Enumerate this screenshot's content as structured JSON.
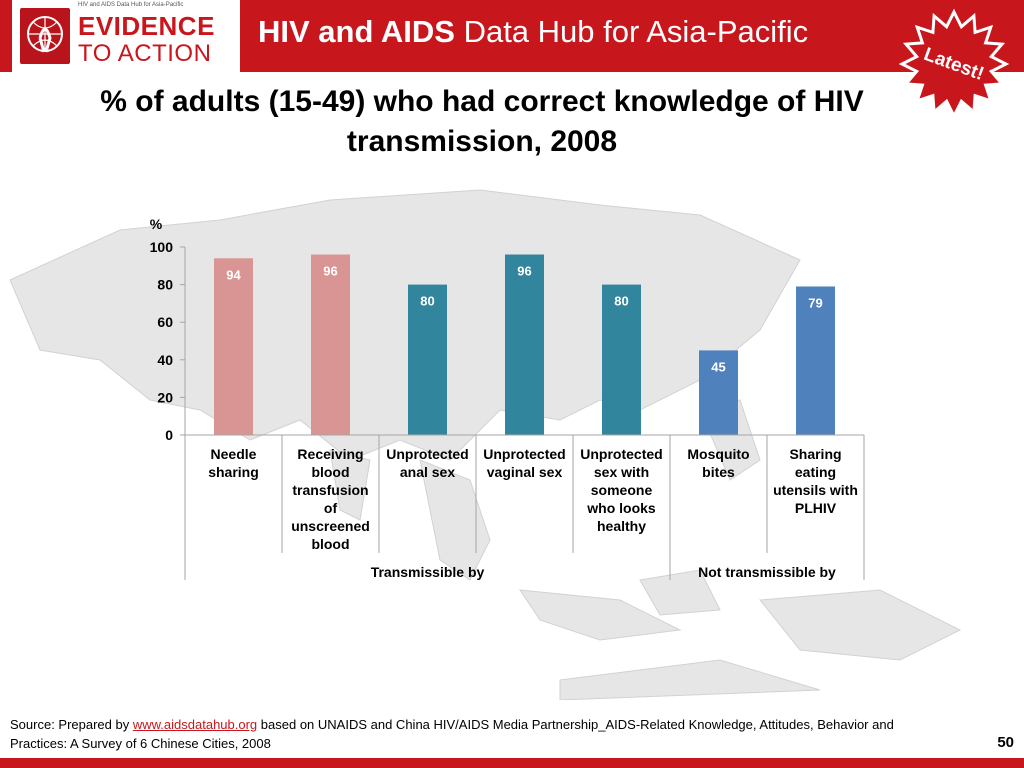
{
  "header": {
    "logo_caption": "HIV and AIDS Data Hub for Asia-Pacific",
    "logo_line1": "EVIDENCE",
    "logo_line2": "TO ACTION",
    "title_bold": "HIV and AIDS",
    "title_rest": "Data Hub for Asia-Pacific",
    "badge_text": "Latest!"
  },
  "colors": {
    "brand_red": "#c8161d",
    "bar_pink": "#d99594",
    "bar_teal": "#31859c",
    "bar_blue": "#4f81bd"
  },
  "chart_data": {
    "type": "bar",
    "title": "% of adults (15-49) who had correct knowledge of HIV transmission, 2008",
    "ylabel": "%",
    "ylim": [
      0,
      100
    ],
    "yticks": [
      "0",
      "20",
      "40",
      "60",
      "80",
      "100"
    ],
    "categories": [
      "Needle sharing",
      "Receiving blood transfusion of unscreened blood",
      "Unprotected anal sex",
      "Unprotected vaginal sex",
      "Unprotected sex with someone who looks healthy",
      "Mosquito bites",
      "Sharing eating utensils with PLHIV"
    ],
    "category_lines": [
      [
        "Needle",
        "sharing"
      ],
      [
        "Receiving",
        "blood",
        "transfusion",
        "of",
        "unscreened",
        "blood"
      ],
      [
        "Unprotected",
        "anal sex"
      ],
      [
        "Unprotected",
        "vaginal sex"
      ],
      [
        "Unprotected",
        "sex with",
        "someone",
        "who looks",
        "healthy"
      ],
      [
        "Mosquito",
        "bites"
      ],
      [
        "Sharing",
        "eating",
        "utensils with",
        "PLHIV"
      ]
    ],
    "values": [
      94,
      96,
      80,
      96,
      80,
      45,
      79
    ],
    "data_labels": [
      "94",
      "96",
      "80",
      "96",
      "80",
      "45",
      "79"
    ],
    "bar_colors": [
      "#d99594",
      "#d99594",
      "#31859c",
      "#31859c",
      "#31859c",
      "#4f81bd",
      "#4f81bd"
    ],
    "groups": [
      {
        "label": "Transmissible by",
        "span": [
          0,
          4
        ]
      },
      {
        "label": "Not transmissible by",
        "span": [
          5,
          6
        ]
      }
    ]
  },
  "footer": {
    "source_prefix": "Source: Prepared by",
    "source_link": "www.aidsdatahub.org",
    "source_rest": " based on UNAIDS and China HIV/AIDS Media Partnership_AIDS-Related Knowledge, Attitudes, Behavior and Practices: A Survey of 6 Chinese Cities, 2008",
    "page_number": "50"
  }
}
